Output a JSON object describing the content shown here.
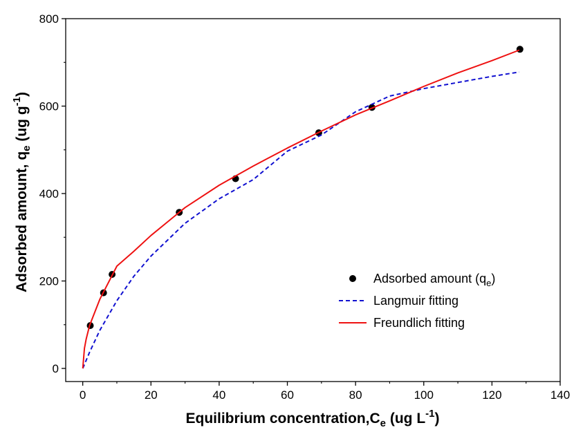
{
  "chart_data": {
    "type": "scatter",
    "xlabel": {
      "main": "Equilibrium concentration,C",
      "sub": "e",
      "unit_pre": " (ug L",
      "sup": "-1",
      "unit_post": ")"
    },
    "ylabel": {
      "main": "Adsorbed amount, q",
      "sub": "e",
      "unit_pre": " (ug g",
      "sup": "-1",
      "unit_post": ")"
    },
    "xlim": [
      -5,
      140
    ],
    "ylim": [
      -30,
      800
    ],
    "xticks": [
      0,
      20,
      40,
      60,
      80,
      100,
      120,
      140
    ],
    "yticks": [
      0,
      200,
      400,
      600,
      800
    ],
    "grid": false,
    "legend_position": "bottom-right",
    "series": [
      {
        "name": "Adsorbed amount (q",
        "name_sub": "e",
        "name_post": ")",
        "kind": "scatter",
        "color": "#000000",
        "x": [
          2.2,
          6.1,
          8.6,
          28.3,
          44.8,
          69.2,
          84.8,
          128.2
        ],
        "y": [
          98,
          173,
          215,
          357,
          434,
          539,
          597,
          730
        ]
      },
      {
        "name": "Langmuir fitting",
        "kind": "line",
        "style": "dashed",
        "color": "#1010d0",
        "x": [
          0,
          2,
          5,
          10,
          15,
          20,
          30,
          40,
          50,
          60,
          70,
          80,
          90,
          100,
          110,
          120,
          128
        ],
        "y": [
          0,
          37,
          87,
          155,
          211,
          257,
          332,
          388,
          432,
          497,
          534,
          587,
          623,
          640,
          654,
          668,
          678
        ]
      },
      {
        "name": "Freundlich fitting",
        "kind": "line",
        "style": "solid",
        "color": "#ee1111",
        "x": [
          0,
          0.5,
          1,
          2,
          5,
          10,
          15,
          20,
          30,
          40,
          50,
          60,
          70,
          80,
          90,
          100,
          110,
          120,
          128
        ],
        "y": [
          0,
          46,
          67,
          98,
          158,
          234,
          268,
          304,
          368,
          419,
          463,
          504,
          543,
          580,
          612,
          645,
          676,
          704,
          728
        ]
      }
    ]
  }
}
